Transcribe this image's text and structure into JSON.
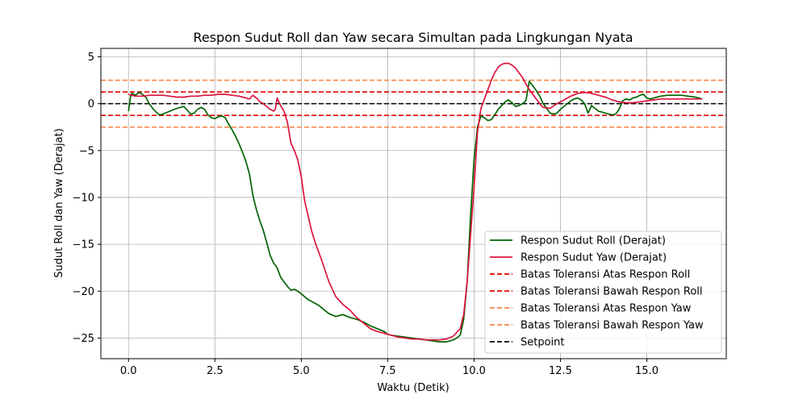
{
  "chart_data": {
    "type": "line",
    "title": "Respon Sudut Roll dan Yaw secara Simultan pada Lingkungan Nyata",
    "xlabel": "Waktu (Detik)",
    "ylabel": "Sudut Roll dan Yaw (Derajat)",
    "xlim": [
      -0.8,
      17.3
    ],
    "ylim": [
      -27.2,
      5.9
    ],
    "xticks": [
      0.0,
      2.5,
      5.0,
      7.5,
      10.0,
      12.5,
      15.0
    ],
    "xtick_labels": [
      "0.0",
      "2.5",
      "5.0",
      "7.5",
      "10.0",
      "12.5",
      "15.0"
    ],
    "yticks": [
      5,
      0,
      -5,
      -10,
      -15,
      -20,
      -25
    ],
    "ytick_labels": [
      "5",
      "0",
      "−5",
      "−10",
      "−15",
      "−20",
      "−25"
    ],
    "grid": true,
    "legend_position": "lower-right",
    "series": [
      {
        "name": "Respon Sudut Roll (Derajat)",
        "color": "#006400",
        "style": "solid",
        "x": [
          0.0,
          0.05,
          0.1,
          0.2,
          0.3,
          0.4,
          0.5,
          0.6,
          0.7,
          0.8,
          0.9,
          1.0,
          1.2,
          1.4,
          1.6,
          1.8,
          1.9,
          2.0,
          2.1,
          2.2,
          2.3,
          2.4,
          2.5,
          2.6,
          2.7,
          2.8,
          2.9,
          3.0,
          3.1,
          3.2,
          3.3,
          3.4,
          3.5,
          3.6,
          3.7,
          3.8,
          3.9,
          4.0,
          4.1,
          4.2,
          4.3,
          4.4,
          4.5,
          4.6,
          4.7,
          4.8,
          4.9,
          5.0,
          5.1,
          5.2,
          5.3,
          5.4,
          5.5,
          5.6,
          5.8,
          6.0,
          6.1,
          6.2,
          6.4,
          6.6,
          6.8,
          7.0,
          7.2,
          7.4,
          7.5,
          7.6,
          7.8,
          8.0,
          8.2,
          8.4,
          8.6,
          8.8,
          9.0,
          9.2,
          9.3,
          9.4,
          9.5,
          9.6,
          9.7,
          9.8,
          9.9,
          10.0,
          10.1,
          10.2,
          10.3,
          10.4,
          10.5,
          10.6,
          10.7,
          10.8,
          10.9,
          11.0,
          11.1,
          11.2,
          11.3,
          11.4,
          11.5,
          11.6,
          11.7,
          11.8,
          11.9,
          12.0,
          12.1,
          12.2,
          12.3,
          12.4,
          12.5,
          12.6,
          12.7,
          12.8,
          12.9,
          13.0,
          13.1,
          13.2,
          13.3,
          13.4,
          13.5,
          13.6,
          13.7,
          13.8,
          13.9,
          14.0,
          14.1,
          14.2,
          14.3,
          14.4,
          14.5,
          14.6,
          14.7,
          14.8,
          14.9,
          15.0,
          15.1,
          15.2,
          15.4,
          15.6,
          15.8,
          16.0,
          16.2,
          16.4,
          16.6
        ],
        "y": [
          -0.8,
          0.6,
          1.1,
          0.9,
          1.2,
          1.0,
          0.7,
          0.0,
          -0.5,
          -0.9,
          -1.2,
          -1.1,
          -0.8,
          -0.5,
          -0.3,
          -1.1,
          -1.0,
          -0.6,
          -0.4,
          -0.6,
          -1.2,
          -1.5,
          -1.6,
          -1.4,
          -1.3,
          -1.5,
          -2.2,
          -2.8,
          -3.5,
          -4.3,
          -5.2,
          -6.2,
          -7.5,
          -9.8,
          -11.3,
          -12.5,
          -13.5,
          -14.8,
          -16.2,
          -17.0,
          -17.5,
          -18.5,
          -19.0,
          -19.5,
          -19.9,
          -19.8,
          -20.0,
          -20.3,
          -20.6,
          -20.9,
          -21.1,
          -21.3,
          -21.5,
          -21.8,
          -22.4,
          -22.7,
          -22.6,
          -22.5,
          -22.8,
          -23.0,
          -23.3,
          -23.7,
          -24.0,
          -24.3,
          -24.6,
          -24.7,
          -24.8,
          -24.9,
          -25.0,
          -25.1,
          -25.2,
          -25.3,
          -25.4,
          -25.4,
          -25.3,
          -25.2,
          -25.0,
          -24.7,
          -23.0,
          -19.0,
          -12.0,
          -6.0,
          -2.5,
          -1.3,
          -1.5,
          -1.8,
          -1.7,
          -1.2,
          -0.6,
          -0.2,
          0.2,
          0.4,
          0.1,
          -0.3,
          -0.2,
          0.0,
          0.3,
          2.4,
          1.9,
          1.4,
          0.8,
          0.0,
          -0.5,
          -1.0,
          -1.1,
          -1.0,
          -0.6,
          -0.3,
          0.0,
          0.3,
          0.5,
          0.6,
          0.4,
          0.0,
          -1.0,
          -0.2,
          -0.5,
          -0.8,
          -0.9,
          -1.0,
          -1.1,
          -1.2,
          -1.1,
          -0.6,
          0.3,
          0.5,
          0.4,
          0.6,
          0.7,
          0.9,
          1.0,
          0.6,
          0.5,
          0.6,
          0.8,
          0.9,
          0.9,
          0.9,
          0.8,
          0.7,
          0.5
        ]
      },
      {
        "name": "Respon Sudut Yaw (Derajat)",
        "color": "#dc143c",
        "style": "solid",
        "x": [
          0.0,
          0.2,
          0.4,
          0.6,
          0.8,
          1.0,
          1.2,
          1.4,
          1.6,
          1.8,
          2.0,
          2.2,
          2.4,
          2.6,
          2.8,
          3.0,
          3.2,
          3.4,
          3.5,
          3.6,
          3.7,
          3.8,
          3.9,
          4.0,
          4.1,
          4.2,
          4.25,
          4.3,
          4.4,
          4.5,
          4.6,
          4.7,
          4.8,
          4.9,
          5.0,
          5.1,
          5.2,
          5.3,
          5.4,
          5.6,
          5.8,
          6.0,
          6.2,
          6.4,
          6.6,
          6.8,
          7.0,
          7.2,
          7.4,
          7.6,
          7.8,
          8.0,
          8.2,
          8.4,
          8.6,
          8.8,
          9.0,
          9.2,
          9.4,
          9.6,
          9.7,
          9.8,
          9.9,
          10.0,
          10.1,
          10.2,
          10.3,
          10.4,
          10.5,
          10.6,
          10.7,
          10.8,
          10.9,
          11.0,
          11.1,
          11.2,
          11.3,
          11.4,
          11.5,
          11.6,
          11.7,
          11.8,
          11.9,
          12.0,
          12.2,
          12.4,
          12.6,
          12.8,
          13.0,
          13.2,
          13.4,
          13.6,
          13.8,
          14.0,
          14.2,
          14.4,
          14.6,
          14.8,
          15.0,
          15.2,
          15.4,
          15.6,
          15.8,
          16.0,
          16.2,
          16.4,
          16.6
        ],
        "y": [
          1.0,
          0.8,
          0.8,
          0.9,
          0.9,
          0.9,
          0.8,
          0.7,
          0.7,
          0.8,
          0.8,
          0.9,
          0.9,
          1.0,
          1.0,
          0.9,
          0.8,
          0.6,
          0.5,
          0.9,
          0.6,
          0.2,
          0.0,
          -0.3,
          -0.6,
          -0.8,
          -0.6,
          0.6,
          -0.2,
          -0.8,
          -2.0,
          -4.2,
          -5.0,
          -6.0,
          -7.8,
          -10.4,
          -12.0,
          -13.6,
          -14.8,
          -16.8,
          -19.0,
          -20.6,
          -21.4,
          -22.0,
          -22.8,
          -23.4,
          -24.0,
          -24.3,
          -24.5,
          -24.7,
          -24.9,
          -25.0,
          -25.1,
          -25.1,
          -25.2,
          -25.2,
          -25.2,
          -25.1,
          -24.8,
          -24.0,
          -22.5,
          -19.0,
          -14.0,
          -9.0,
          -3.0,
          -0.5,
          0.5,
          1.5,
          2.5,
          3.3,
          3.9,
          4.2,
          4.3,
          4.3,
          4.1,
          3.8,
          3.3,
          2.8,
          2.1,
          1.5,
          1.0,
          0.5,
          0.0,
          -0.4,
          -0.5,
          0.0,
          0.4,
          0.8,
          1.1,
          1.2,
          1.1,
          0.9,
          0.7,
          0.4,
          0.2,
          0.1,
          0.1,
          0.2,
          0.3,
          0.4,
          0.5,
          0.5,
          0.5,
          0.5,
          0.5,
          0.5,
          0.5
        ]
      },
      {
        "name": "Batas Toleransi Atas Respon Roll",
        "color": "#e00000",
        "style": "dashed",
        "constant": 1.25
      },
      {
        "name": "Batas Toleransi Bawah Respon Roll",
        "color": "#e00000",
        "style": "dashed",
        "constant": -1.25
      },
      {
        "name": "Batas Toleransi Atas Respon Yaw",
        "color": "#f4874b",
        "style": "dashed",
        "constant": 2.5
      },
      {
        "name": "Batas Toleransi Bawah Respon Yaw",
        "color": "#f4874b",
        "style": "dashed",
        "constant": -2.5
      },
      {
        "name": "Setpoint",
        "color": "#000000",
        "style": "dashed",
        "constant": 0
      }
    ]
  }
}
